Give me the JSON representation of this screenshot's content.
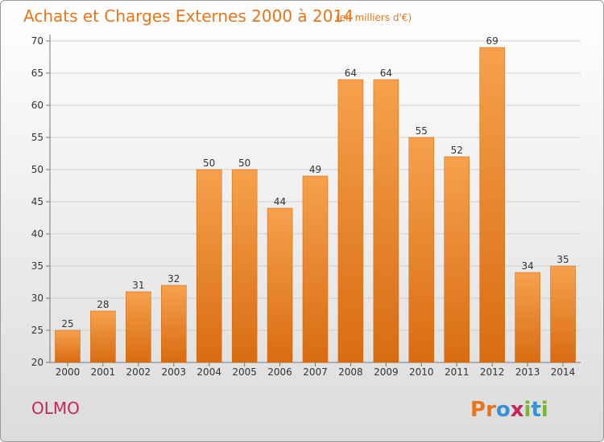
{
  "chart_data": {
    "type": "bar",
    "title": "Achats et Charges Externes 2000 à 2014",
    "subtitle": "(en milliers d'€)",
    "categories": [
      "2000",
      "2001",
      "2002",
      "2003",
      "2004",
      "2005",
      "2006",
      "2007",
      "2008",
      "2009",
      "2010",
      "2011",
      "2012",
      "2013",
      "2014"
    ],
    "values": [
      25,
      28,
      31,
      32,
      50,
      50,
      44,
      49,
      64,
      64,
      55,
      52,
      69,
      34,
      35
    ],
    "ylim": [
      20,
      70
    ],
    "yticks": [
      20,
      25,
      30,
      35,
      40,
      45,
      50,
      55,
      60,
      65,
      70
    ],
    "grid": true,
    "legend": "none",
    "bar_color": "#f08b2c"
  },
  "footer": {
    "place": "OLMO",
    "logo": [
      "P",
      "r",
      "o",
      "x",
      "i",
      "t",
      "i"
    ],
    "logo_colors": [
      "#e8751a",
      "#e8751a",
      "#3b8fd6",
      "#c4255a",
      "#7bb536",
      "#3b8fd6",
      "#7bb536"
    ]
  }
}
